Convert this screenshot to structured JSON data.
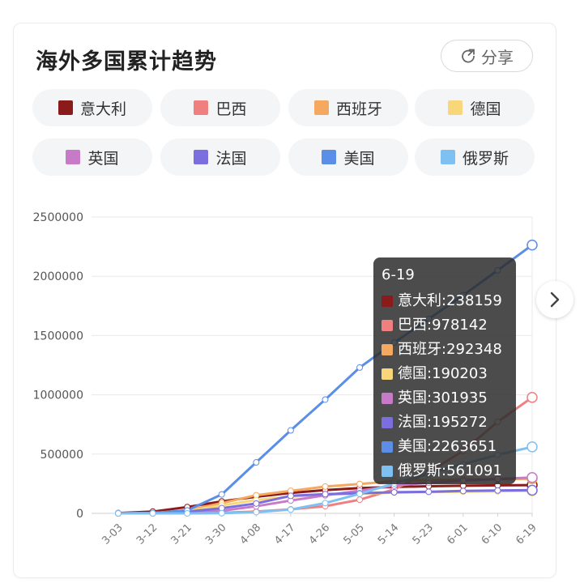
{
  "header": {
    "title": "海外多国累计趋势",
    "share_label": "分享"
  },
  "legend": [
    {
      "label": "意大利",
      "color": "#8b1a1a"
    },
    {
      "label": "巴西",
      "color": "#f08080"
    },
    {
      "label": "西班牙",
      "color": "#f4a860"
    },
    {
      "label": "德国",
      "color": "#f8d67a"
    },
    {
      "label": "英国",
      "color": "#c77ac7"
    },
    {
      "label": "法国",
      "color": "#7b6fe0"
    },
    {
      "label": "美国",
      "color": "#5b8ee6"
    },
    {
      "label": "俄罗斯",
      "color": "#7ec0f2"
    }
  ],
  "tooltip": {
    "title": "6-19",
    "rows": [
      "意大利:238159",
      "巴西:978142",
      "西班牙:292348",
      "德国:190203",
      "英国:301935",
      "法国:195272",
      "美国:2263651",
      "俄罗斯:561091"
    ]
  },
  "chart_data": {
    "type": "line",
    "x": [
      "3-03",
      "3-12",
      "3-21",
      "3-30",
      "4-08",
      "4-17",
      "4-26",
      "5-05",
      "5-14",
      "5-23",
      "6-01",
      "6-10",
      "6-19"
    ],
    "ylim": [
      0,
      2500000
    ],
    "yticks": [
      "2500000",
      "2000000",
      "1500000",
      "1000000",
      "500000",
      "0"
    ],
    "grid": true,
    "series": [
      {
        "name": "意大利",
        "color": "#8b1a1a",
        "values": [
          2500,
          15000,
          53000,
          101000,
          140000,
          172000,
          197000,
          213000,
          223000,
          229000,
          233000,
          236000,
          238159
        ]
      },
      {
        "name": "巴西",
        "color": "#f08080",
        "values": [
          0,
          0,
          1000,
          5000,
          16000,
          34000,
          61000,
          115000,
          203000,
          347000,
          527000,
          772000,
          978142
        ]
      },
      {
        "name": "西班牙",
        "color": "#f4a860",
        "values": [
          200,
          3000,
          25000,
          87000,
          153000,
          190000,
          226000,
          248000,
          272000,
          281000,
          286000,
          289000,
          292348
        ]
      },
      {
        "name": "德国",
        "color": "#f8d67a",
        "values": [
          200,
          3000,
          22000,
          67000,
          113000,
          141000,
          158000,
          167000,
          174000,
          180000,
          183000,
          186000,
          190203
        ]
      },
      {
        "name": "英国",
        "color": "#c77ac7",
        "values": [
          50,
          600,
          5000,
          22000,
          60000,
          108000,
          152000,
          191000,
          234000,
          258000,
          276000,
          290000,
          301935
        ]
      },
      {
        "name": "法国",
        "color": "#7b6fe0",
        "values": [
          200,
          2900,
          14000,
          44000,
          83000,
          148000,
          162000,
          170000,
          178000,
          182000,
          189000,
          193000,
          195272
        ]
      },
      {
        "name": "美国",
        "color": "#5b8ee6",
        "values": [
          100,
          1500,
          25000,
          160000,
          430000,
          700000,
          960000,
          1230000,
          1440000,
          1640000,
          1840000,
          2050000,
          2263651
        ]
      },
      {
        "name": "俄罗斯",
        "color": "#7ec0f2",
        "values": [
          0,
          0,
          300,
          1800,
          10000,
          32000,
          87000,
          165000,
          252000,
          335000,
          415000,
          494000,
          561091
        ]
      }
    ]
  }
}
